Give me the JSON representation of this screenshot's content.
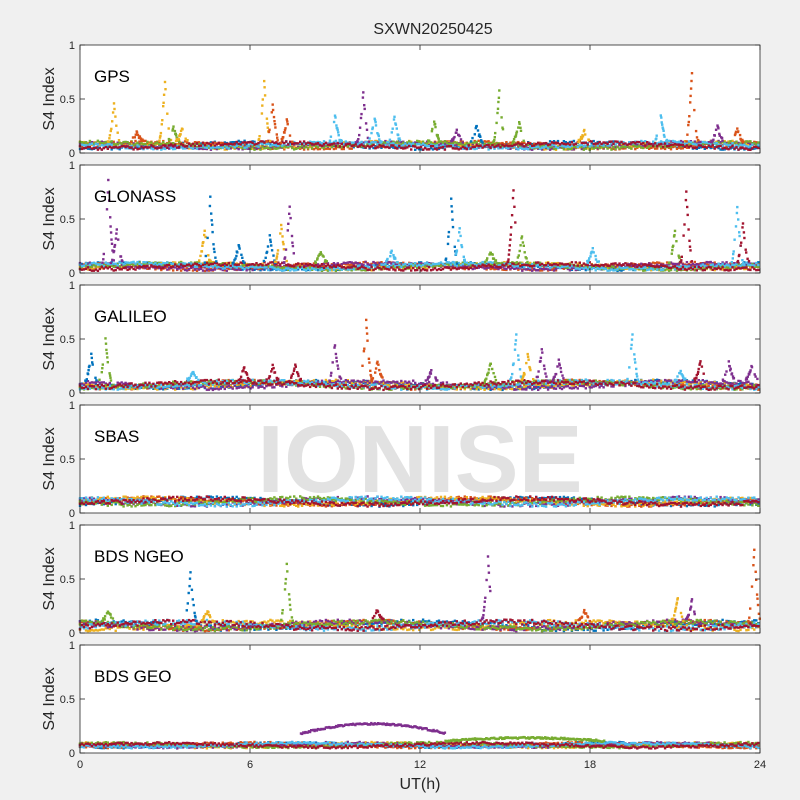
{
  "title": "SXWN20250425",
  "xlabel": "UT(h)",
  "ylabel": "S4 Index",
  "watermark": "IONISE",
  "colors": [
    "#0072bd",
    "#d95319",
    "#edb120",
    "#7e2f8e",
    "#77ac30",
    "#4dbeee",
    "#a2142f"
  ],
  "chart_data": {
    "type": "scatter",
    "xlim": [
      0,
      24
    ],
    "ylim": [
      0,
      1
    ],
    "xticks": [
      "0",
      "6",
      "12",
      "18",
      "24"
    ],
    "yticks": [
      "0",
      "0.5",
      "1"
    ],
    "grid": false,
    "panels": [
      {
        "name": "GPS",
        "baseline": [
          0.04,
          0.11
        ],
        "bursts": [
          {
            "x": 1.2,
            "y": 0.45,
            "c": 2
          },
          {
            "x": 2.0,
            "y": 0.2,
            "c": 1
          },
          {
            "x": 3.0,
            "y": 0.67,
            "c": 2
          },
          {
            "x": 3.3,
            "y": 0.25,
            "c": 4
          },
          {
            "x": 3.6,
            "y": 0.22,
            "c": 2
          },
          {
            "x": 6.5,
            "y": 0.68,
            "c": 2
          },
          {
            "x": 6.8,
            "y": 0.45,
            "c": 1
          },
          {
            "x": 7.3,
            "y": 0.3,
            "c": 1
          },
          {
            "x": 9.0,
            "y": 0.35,
            "c": 5
          },
          {
            "x": 10.0,
            "y": 0.56,
            "c": 3
          },
          {
            "x": 10.4,
            "y": 0.33,
            "c": 5
          },
          {
            "x": 11.1,
            "y": 0.33,
            "c": 5
          },
          {
            "x": 12.5,
            "y": 0.3,
            "c": 4
          },
          {
            "x": 13.3,
            "y": 0.2,
            "c": 3
          },
          {
            "x": 14.0,
            "y": 0.25,
            "c": 0
          },
          {
            "x": 14.8,
            "y": 0.58,
            "c": 4
          },
          {
            "x": 15.5,
            "y": 0.28,
            "c": 4
          },
          {
            "x": 17.8,
            "y": 0.2,
            "c": 2
          },
          {
            "x": 20.5,
            "y": 0.35,
            "c": 5
          },
          {
            "x": 21.6,
            "y": 0.75,
            "c": 1
          },
          {
            "x": 22.5,
            "y": 0.25,
            "c": 3
          },
          {
            "x": 23.2,
            "y": 0.22,
            "c": 1
          }
        ]
      },
      {
        "name": "GLONASS",
        "baseline": [
          0.03,
          0.1
        ],
        "bursts": [
          {
            "x": 1.0,
            "y": 0.85,
            "c": 3
          },
          {
            "x": 1.3,
            "y": 0.4,
            "c": 3
          },
          {
            "x": 4.4,
            "y": 0.4,
            "c": 2
          },
          {
            "x": 4.6,
            "y": 0.7,
            "c": 0
          },
          {
            "x": 5.6,
            "y": 0.25,
            "c": 0
          },
          {
            "x": 6.7,
            "y": 0.35,
            "c": 0
          },
          {
            "x": 7.1,
            "y": 0.45,
            "c": 2
          },
          {
            "x": 7.4,
            "y": 0.62,
            "c": 3
          },
          {
            "x": 8.5,
            "y": 0.2,
            "c": 4
          },
          {
            "x": 11.0,
            "y": 0.2,
            "c": 5
          },
          {
            "x": 13.1,
            "y": 0.7,
            "c": 0
          },
          {
            "x": 13.4,
            "y": 0.4,
            "c": 5
          },
          {
            "x": 14.5,
            "y": 0.2,
            "c": 4
          },
          {
            "x": 15.3,
            "y": 0.77,
            "c": 6
          },
          {
            "x": 15.6,
            "y": 0.35,
            "c": 4
          },
          {
            "x": 18.1,
            "y": 0.22,
            "c": 5
          },
          {
            "x": 21.0,
            "y": 0.4,
            "c": 4
          },
          {
            "x": 21.4,
            "y": 0.75,
            "c": 6
          },
          {
            "x": 23.2,
            "y": 0.62,
            "c": 5
          },
          {
            "x": 23.4,
            "y": 0.45,
            "c": 6
          }
        ]
      },
      {
        "name": "GALILEO",
        "baseline": [
          0.04,
          0.12
        ],
        "bursts": [
          {
            "x": 0.4,
            "y": 0.35,
            "c": 0
          },
          {
            "x": 0.9,
            "y": 0.5,
            "c": 4
          },
          {
            "x": 4.0,
            "y": 0.2,
            "c": 5
          },
          {
            "x": 5.8,
            "y": 0.25,
            "c": 6
          },
          {
            "x": 6.8,
            "y": 0.25,
            "c": 6
          },
          {
            "x": 7.6,
            "y": 0.25,
            "c": 6
          },
          {
            "x": 9.0,
            "y": 0.45,
            "c": 3
          },
          {
            "x": 10.1,
            "y": 0.67,
            "c": 1
          },
          {
            "x": 10.5,
            "y": 0.3,
            "c": 1
          },
          {
            "x": 12.4,
            "y": 0.2,
            "c": 3
          },
          {
            "x": 14.5,
            "y": 0.28,
            "c": 4
          },
          {
            "x": 15.4,
            "y": 0.55,
            "c": 5
          },
          {
            "x": 15.8,
            "y": 0.35,
            "c": 2
          },
          {
            "x": 16.3,
            "y": 0.4,
            "c": 3
          },
          {
            "x": 16.9,
            "y": 0.3,
            "c": 3
          },
          {
            "x": 19.5,
            "y": 0.55,
            "c": 5
          },
          {
            "x": 21.2,
            "y": 0.2,
            "c": 5
          },
          {
            "x": 21.9,
            "y": 0.3,
            "c": 6
          },
          {
            "x": 22.9,
            "y": 0.28,
            "c": 3
          },
          {
            "x": 23.7,
            "y": 0.25,
            "c": 3
          }
        ]
      },
      {
        "name": "SBAS",
        "baseline": [
          0.07,
          0.15
        ],
        "bursts": []
      },
      {
        "name": "BDS NGEO",
        "baseline": [
          0.03,
          0.12
        ],
        "bursts": [
          {
            "x": 1.0,
            "y": 0.2,
            "c": 4
          },
          {
            "x": 3.9,
            "y": 0.55,
            "c": 0
          },
          {
            "x": 4.5,
            "y": 0.2,
            "c": 2
          },
          {
            "x": 7.3,
            "y": 0.63,
            "c": 4
          },
          {
            "x": 10.5,
            "y": 0.22,
            "c": 6
          },
          {
            "x": 14.4,
            "y": 0.7,
            "c": 3
          },
          {
            "x": 17.8,
            "y": 0.2,
            "c": 1
          },
          {
            "x": 21.1,
            "y": 0.32,
            "c": 2
          },
          {
            "x": 21.6,
            "y": 0.3,
            "c": 3
          },
          {
            "x": 23.8,
            "y": 0.78,
            "c": 1
          }
        ]
      },
      {
        "name": "BDS GEO",
        "baseline": [
          0.05,
          0.1
        ],
        "bursts": [],
        "arcs": [
          {
            "x0": 7.8,
            "x1": 12.9,
            "ymin": 0.18,
            "ypeak": 0.27,
            "c": 3
          },
          {
            "x0": 12.9,
            "x1": 18.5,
            "ymin": 0.11,
            "ypeak": 0.14,
            "c": 4
          }
        ]
      }
    ]
  }
}
